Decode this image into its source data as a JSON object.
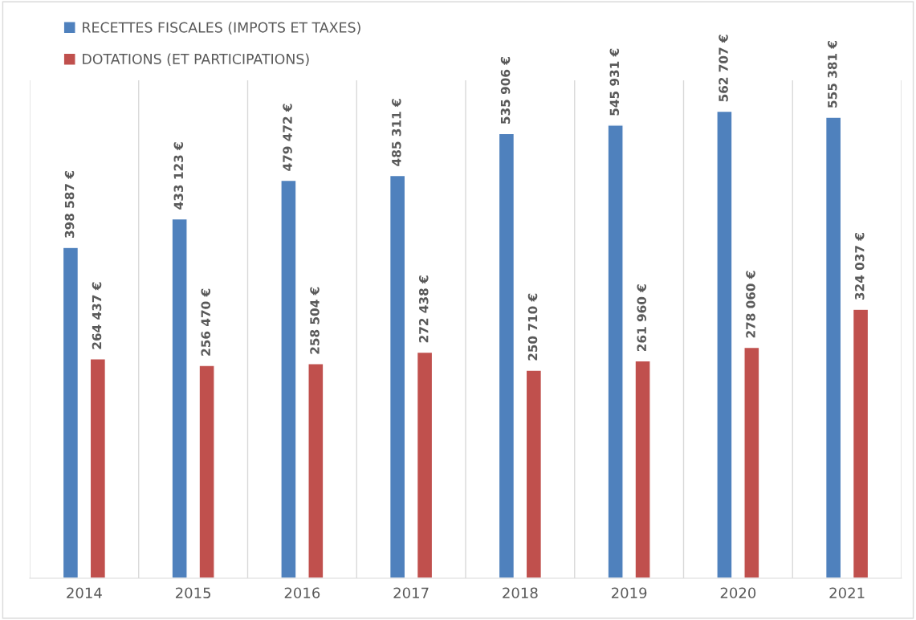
{
  "chart_data": {
    "type": "bar",
    "categories": [
      "2014",
      "2015",
      "2016",
      "2017",
      "2018",
      "2019",
      "2020",
      "2021"
    ],
    "series": [
      {
        "name": "RECETTES FISCALES (IMPOTS ET TAXES)",
        "color": "#4f81bd",
        "values": [
          398587,
          433123,
          479472,
          485311,
          535906,
          545931,
          562707,
          555381
        ],
        "value_labels": [
          "398 587 €",
          "433 123 €",
          "479 472 €",
          "485 311 €",
          "535 906 €",
          "545 931 €",
          "562 707 €",
          "555 381 €"
        ]
      },
      {
        "name": "DOTATIONS (ET PARTICIPATIONS)",
        "color": "#c0504d",
        "values": [
          264437,
          256470,
          258504,
          272438,
          250710,
          261960,
          278060,
          324037
        ],
        "value_labels": [
          "264 437 €",
          "256 470 €",
          "258 504 €",
          "272 438 €",
          "250 710 €",
          "261 960 €",
          "278 060 €",
          "324 037 €"
        ]
      }
    ],
    "ylim": [
      0,
      600000
    ],
    "tick_labels": "x",
    "grid": "x",
    "legend": "top left"
  }
}
